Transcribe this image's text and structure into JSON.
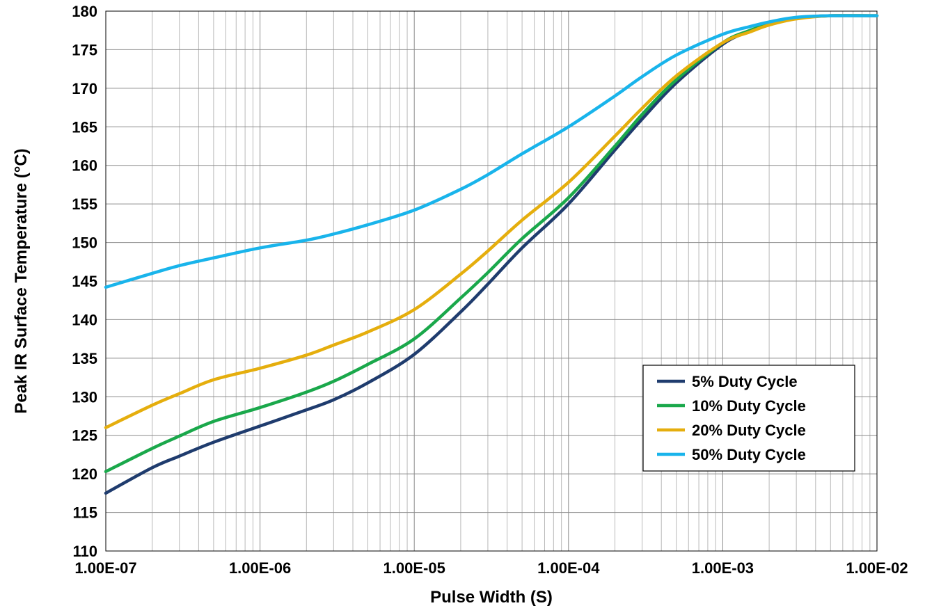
{
  "chart_data": {
    "type": "line",
    "title": "",
    "xlabel": "Pulse Width (S)",
    "ylabel": "Peak IR Surface Temperature (°C)",
    "x_scale": "log",
    "xlim": [
      1e-07,
      0.01
    ],
    "ylim": [
      110,
      180
    ],
    "grid": true,
    "legend_position": "lower-right",
    "x_ticks": [
      {
        "value": 1e-07,
        "label": "1.00E-07"
      },
      {
        "value": 1e-06,
        "label": "1.00E-06"
      },
      {
        "value": 1e-05,
        "label": "1.00E-05"
      },
      {
        "value": 0.0001,
        "label": "1.00E-04"
      },
      {
        "value": 0.001,
        "label": "1.00E-03"
      },
      {
        "value": 0.01,
        "label": "1.00E-02"
      }
    ],
    "y_ticks": [
      110,
      115,
      120,
      125,
      130,
      135,
      140,
      145,
      150,
      155,
      160,
      165,
      170,
      175,
      180
    ],
    "x": [
      1e-07,
      2e-07,
      3e-07,
      5e-07,
      1e-06,
      2e-06,
      3e-06,
      5e-06,
      1e-05,
      2e-05,
      3e-05,
      5e-05,
      0.0001,
      0.0002,
      0.0003,
      0.0005,
      0.001,
      0.0015,
      0.002,
      0.003,
      0.005,
      0.01
    ],
    "series": [
      {
        "name": "5% Duty Cycle",
        "color": "#1F3C6E",
        "values": [
          117.5,
          120.8,
          122.3,
          124.1,
          126.2,
          128.3,
          129.6,
          131.8,
          135.5,
          141.0,
          144.6,
          149.3,
          155.0,
          162.0,
          166.0,
          170.7,
          175.7,
          177.4,
          178.3,
          179.1,
          179.4,
          179.4
        ]
      },
      {
        "name": "10% Duty Cycle",
        "color": "#1AA84B",
        "values": [
          120.3,
          123.3,
          124.9,
          126.8,
          128.6,
          130.6,
          132.0,
          134.2,
          137.5,
          142.8,
          146.1,
          150.5,
          155.8,
          162.5,
          166.6,
          171.1,
          175.9,
          177.5,
          178.3,
          179.1,
          179.4,
          179.4
        ]
      },
      {
        "name": "20% Duty Cycle",
        "color": "#E5AE0D",
        "values": [
          126.0,
          128.9,
          130.4,
          132.2,
          133.7,
          135.4,
          136.7,
          138.4,
          141.3,
          145.9,
          148.9,
          152.9,
          157.8,
          163.8,
          167.4,
          171.6,
          175.9,
          177.3,
          178.2,
          179.0,
          179.4,
          179.4
        ]
      },
      {
        "name": "50% Duty Cycle",
        "color": "#19B4EB",
        "values": [
          144.2,
          146.0,
          147.0,
          148.0,
          149.3,
          150.3,
          151.1,
          152.3,
          154.2,
          156.9,
          158.8,
          161.5,
          165.0,
          169.0,
          171.5,
          174.3,
          177.0,
          178.0,
          178.6,
          179.2,
          179.4,
          179.4
        ]
      }
    ]
  }
}
